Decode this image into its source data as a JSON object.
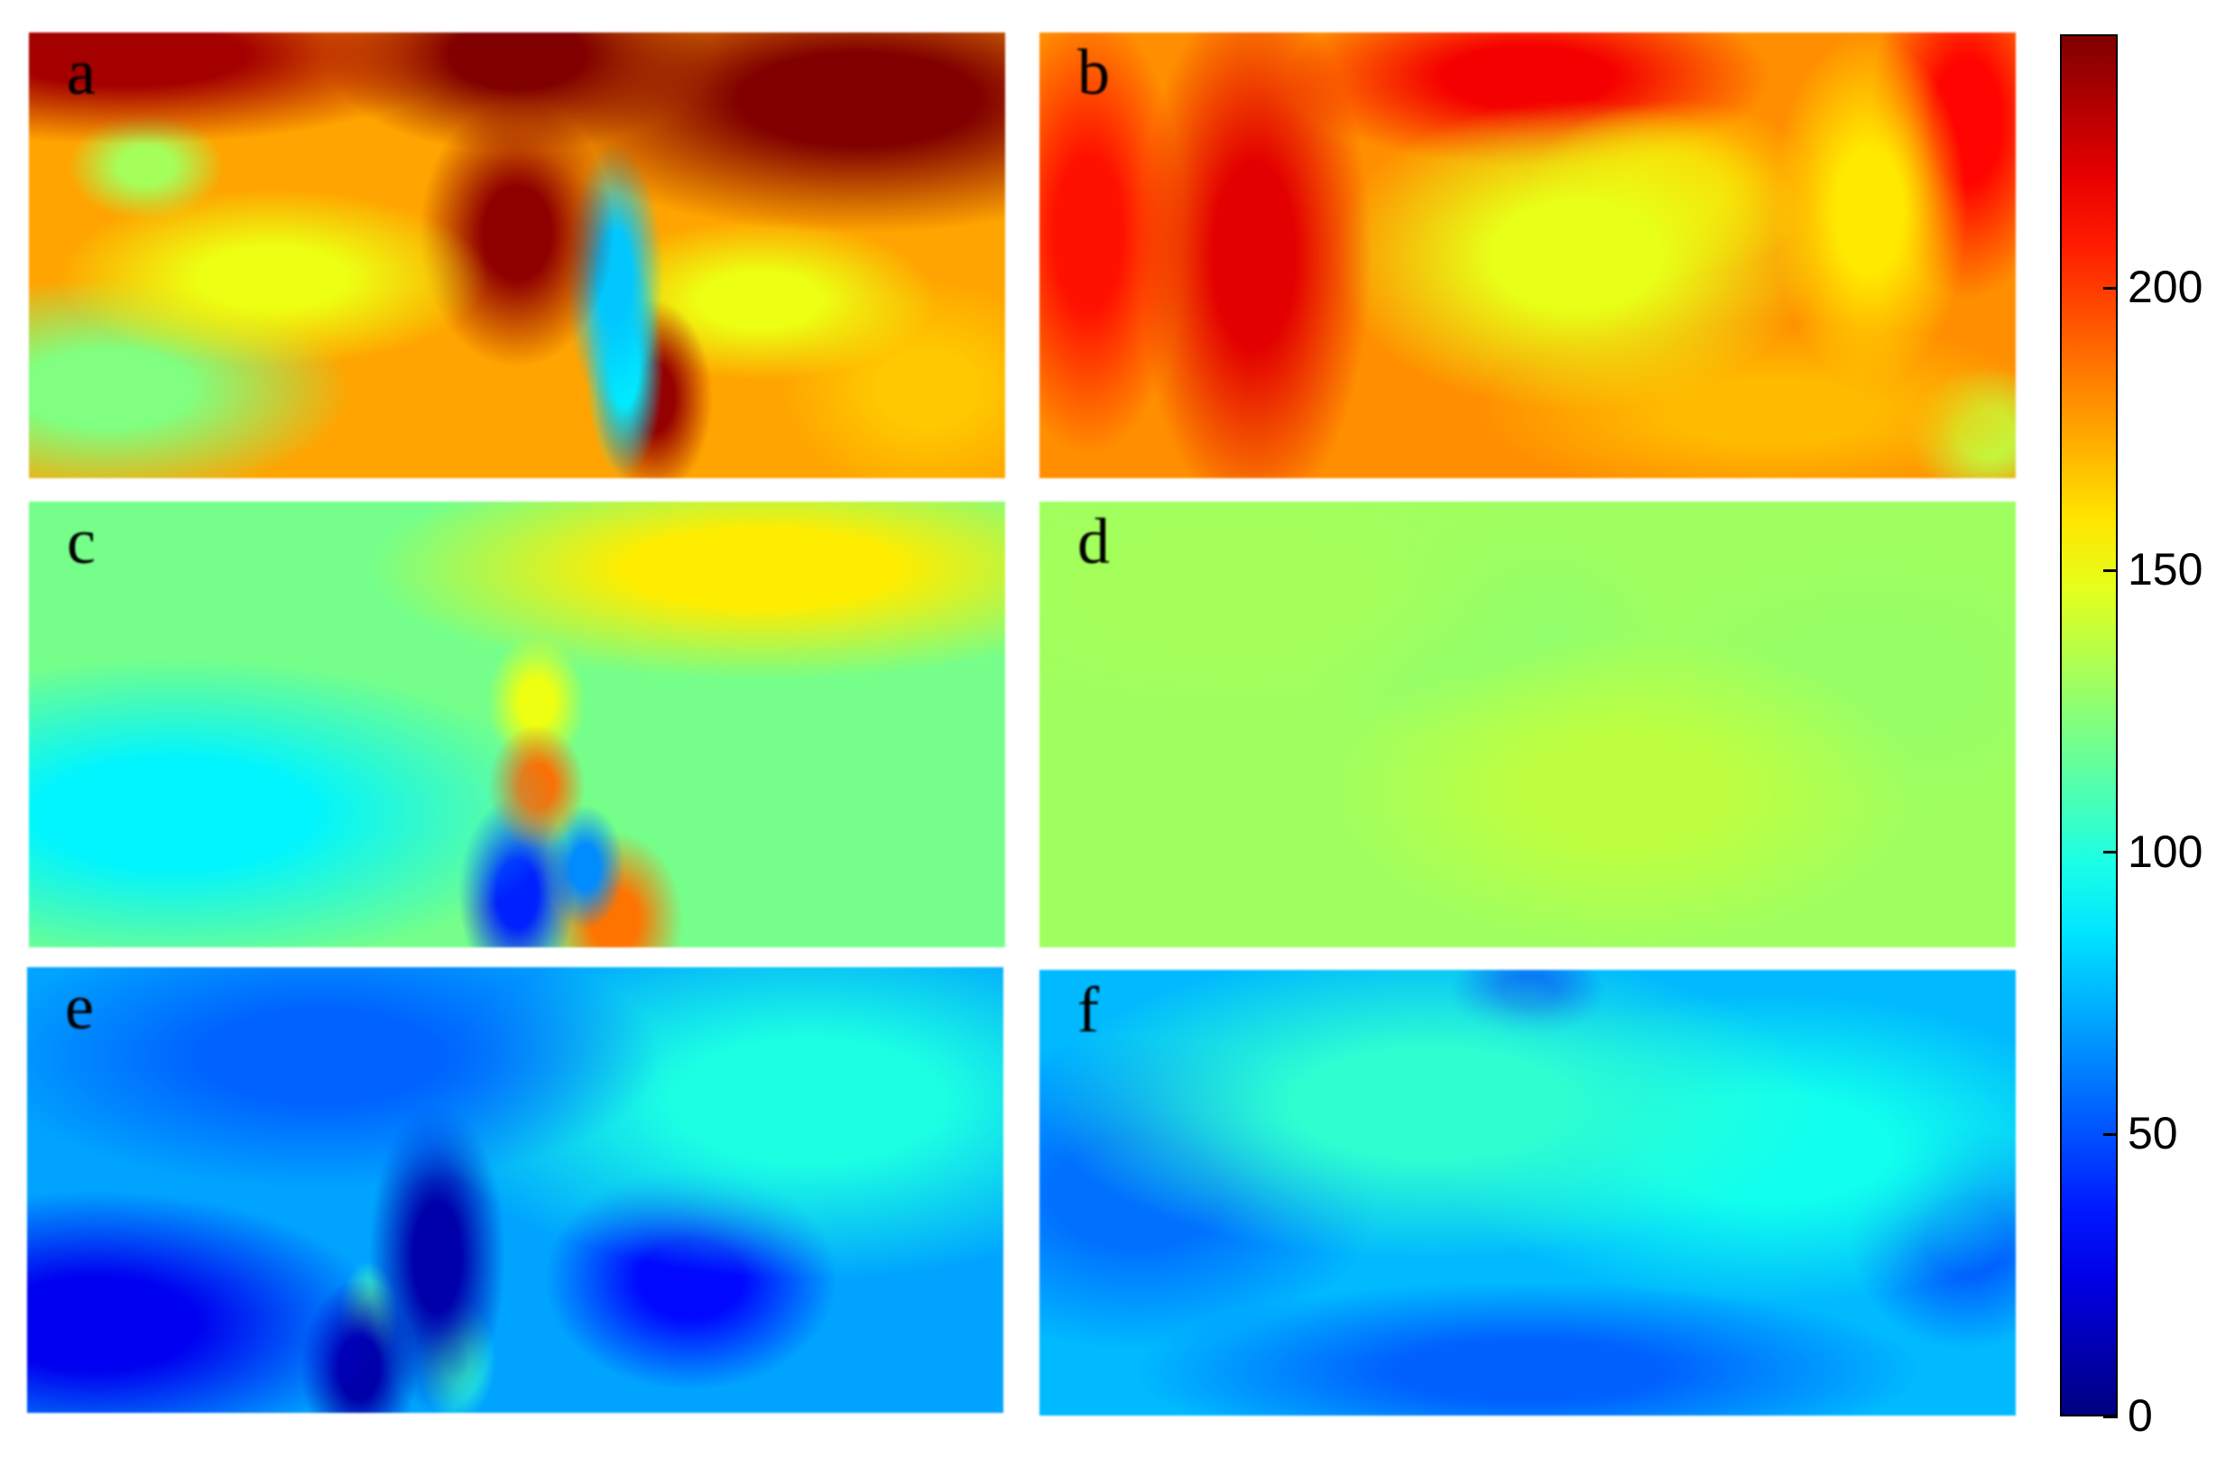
{
  "chart_data": {
    "type": "heatmap",
    "panels": [
      {
        "label": "a",
        "base": 175,
        "min": 70,
        "max": 245
      },
      {
        "label": "b",
        "base": 180,
        "min": 120,
        "max": 230
      },
      {
        "label": "c",
        "base": 120,
        "min": 30,
        "max": 200
      },
      {
        "label": "d",
        "base": 130,
        "min": 115,
        "max": 145
      },
      {
        "label": "e",
        "base": 70,
        "min": 5,
        "max": 115
      },
      {
        "label": "f",
        "base": 75,
        "min": 40,
        "max": 110
      }
    ],
    "colorbar": {
      "colormap": "jet",
      "range": [
        0,
        245
      ],
      "ticks": [
        {
          "value": 0,
          "label": "0"
        },
        {
          "value": 50,
          "label": "50"
        },
        {
          "value": 100,
          "label": "100"
        },
        {
          "value": 150,
          "label": "150"
        },
        {
          "value": 200,
          "label": "200"
        }
      ]
    },
    "colors": {
      "low": "#00007f",
      "mid": "#00ffff",
      "high": "#7f0000"
    }
  }
}
